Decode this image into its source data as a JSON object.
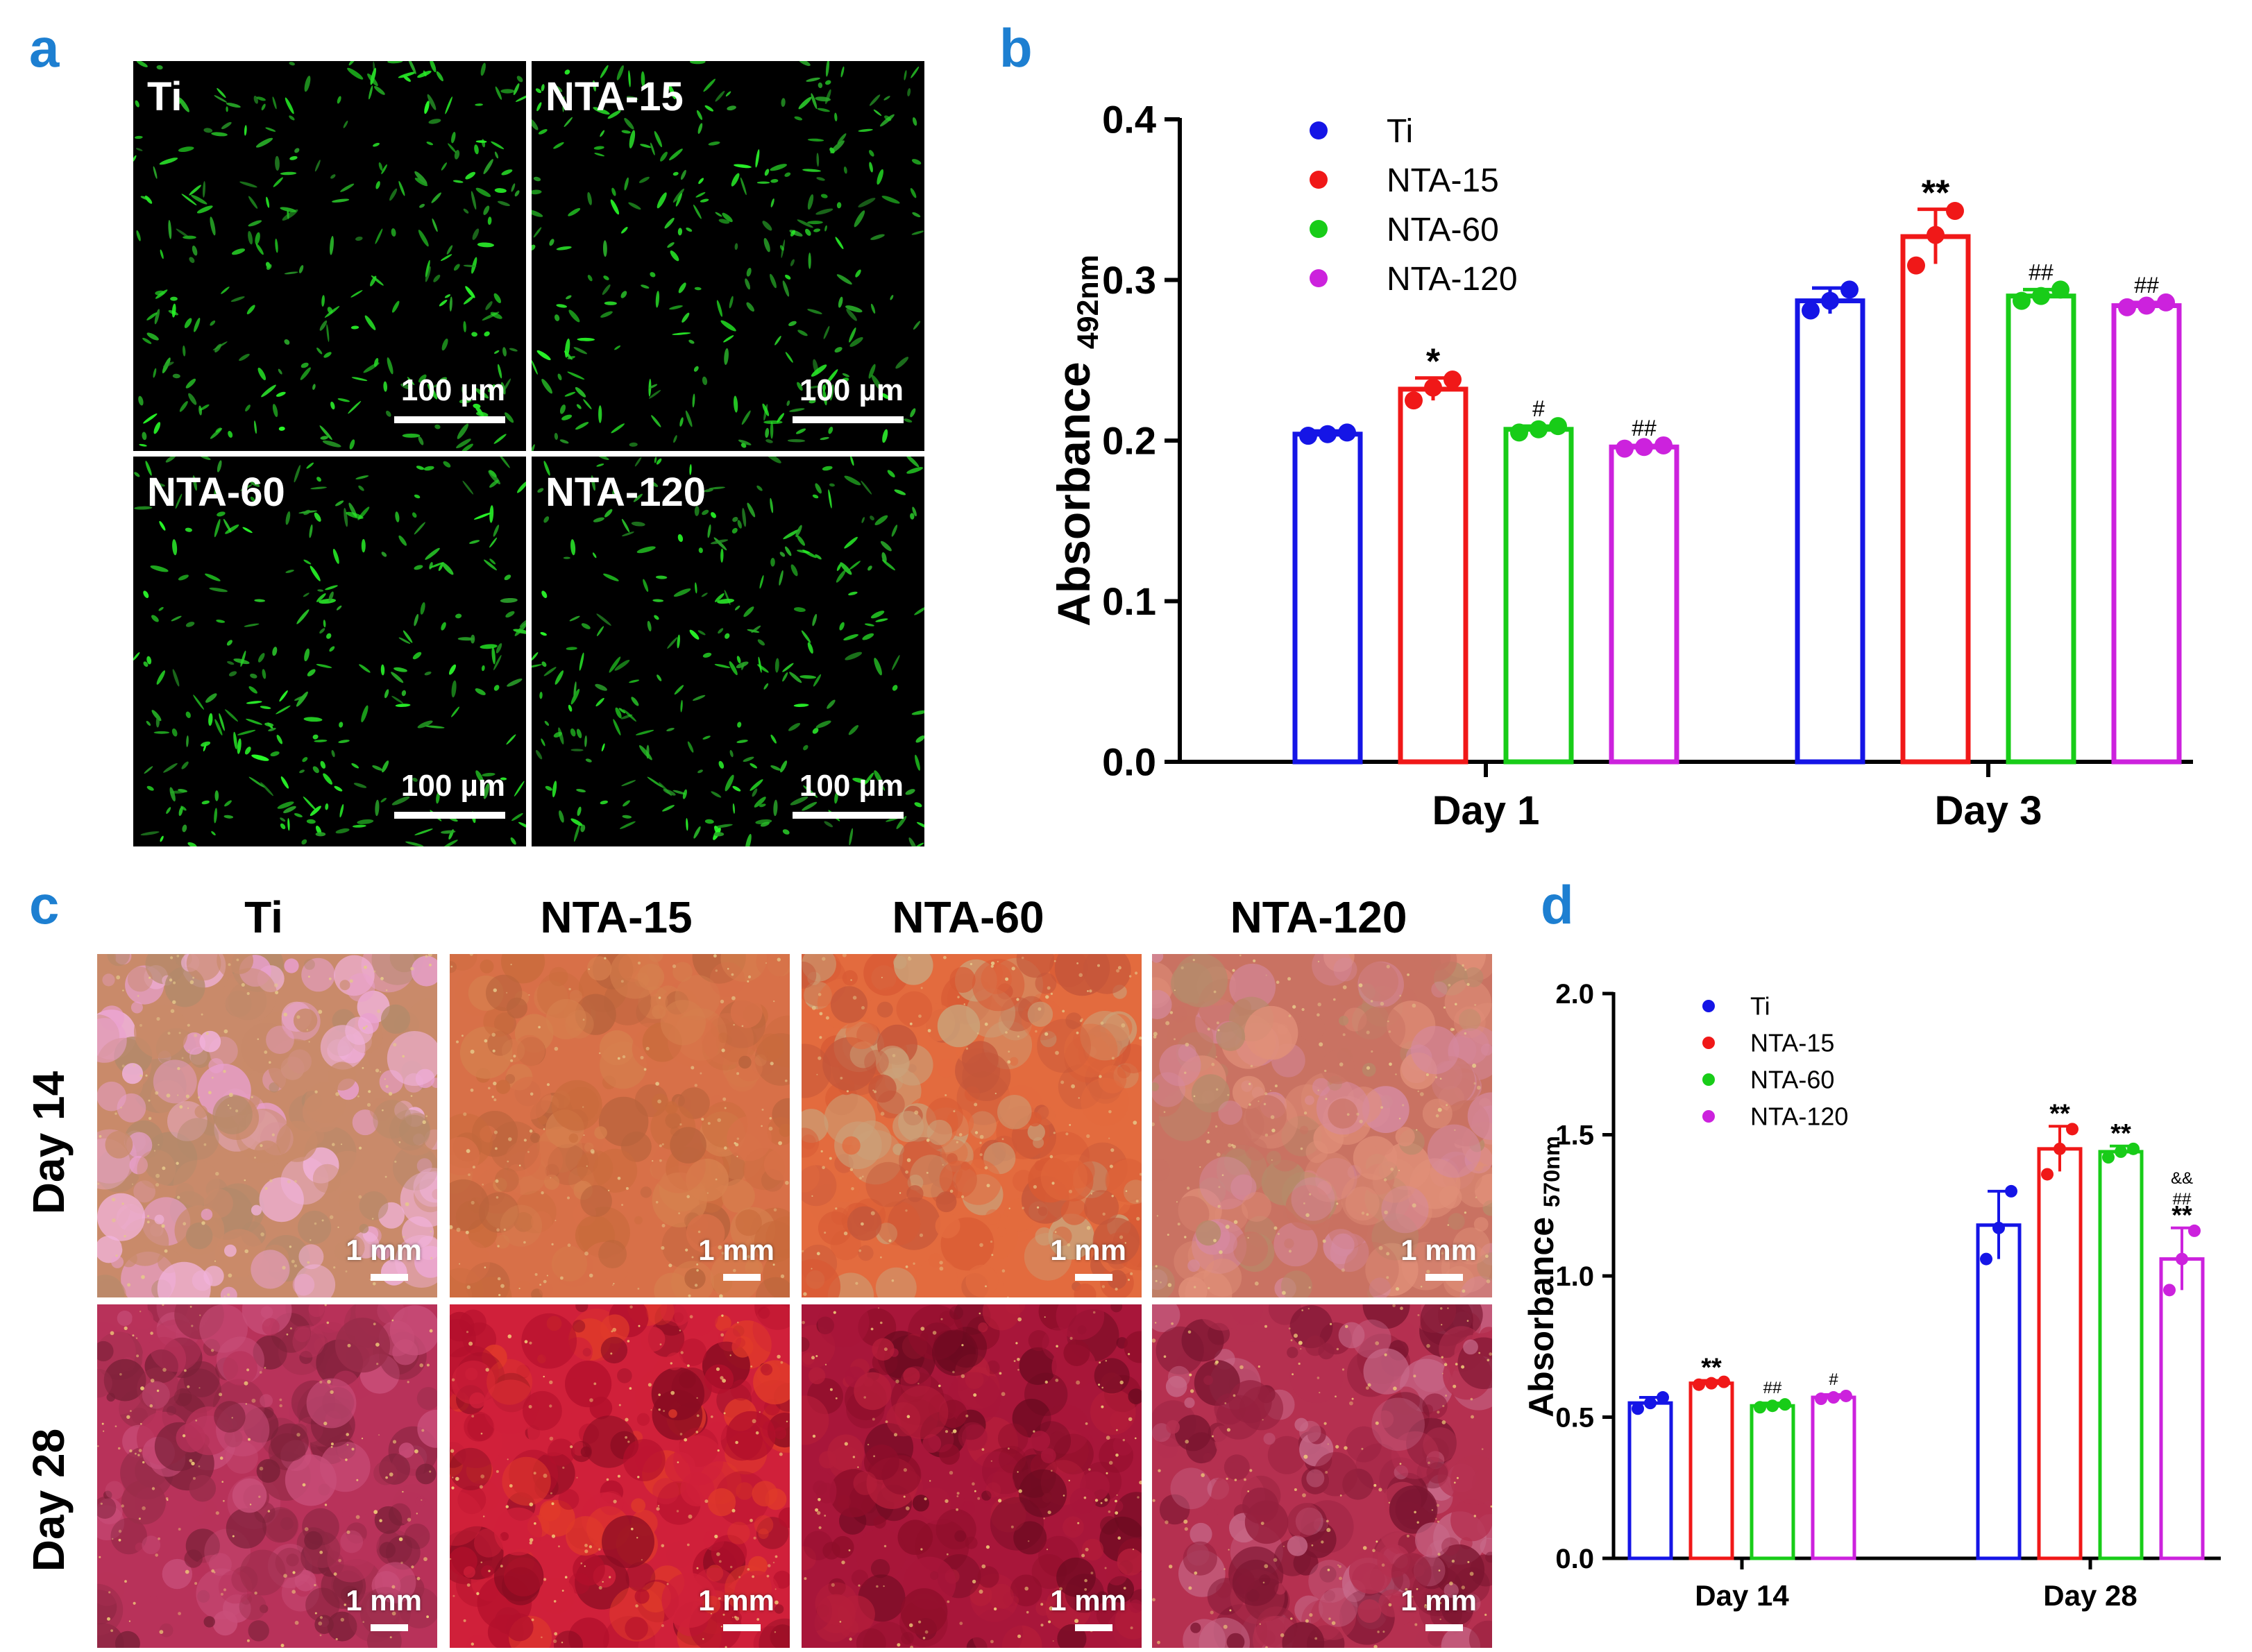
{
  "panels": {
    "a": {
      "label": "a",
      "images": [
        {
          "title": "Ti",
          "scale_bar": "100 µm"
        },
        {
          "title": "NTA-15",
          "scale_bar": "100 µm"
        },
        {
          "title": "NTA-60",
          "scale_bar": "100 µm"
        },
        {
          "title": "NTA-120",
          "scale_bar": "100 µm"
        }
      ]
    },
    "b": {
      "label": "b"
    },
    "c": {
      "label": "c",
      "column_titles": [
        "Ti",
        "NTA-15",
        "NTA-60",
        "NTA-120"
      ],
      "row_titles": [
        "Day 14",
        "Day 28"
      ],
      "scale_bar": "1 mm"
    },
    "d": {
      "label": "d"
    }
  },
  "colors": {
    "Ti": "#1515e6",
    "NTA-15": "#f01818",
    "NTA-60": "#18cc18",
    "NTA-120": "#cc22dd"
  },
  "chart_data": [
    {
      "id": "b",
      "type": "bar",
      "title": "",
      "xlabel": "",
      "ylabel": "Absorbance",
      "ylabel_sub": "492nm",
      "ylim": [
        0,
        0.4
      ],
      "yticks": [
        "0.0",
        "0.1",
        "0.2",
        "0.3",
        "0.4"
      ],
      "categories": [
        "Day 1",
        "Day 3"
      ],
      "series": [
        {
          "name": "Ti",
          "values": [
            0.204,
            0.287
          ],
          "errors": [
            0.002,
            0.008
          ],
          "points": [
            [
              0.203,
              0.204,
              0.205
            ],
            [
              0.281,
              0.287,
              0.294
            ]
          ],
          "annotations": [
            "",
            ""
          ]
        },
        {
          "name": "NTA-15",
          "values": [
            0.232,
            0.327
          ],
          "errors": [
            0.007,
            0.017
          ],
          "points": [
            [
              0.225,
              0.233,
              0.238
            ],
            [
              0.309,
              0.328,
              0.343
            ]
          ],
          "annotations": [
            "*",
            "**"
          ]
        },
        {
          "name": "NTA-60",
          "values": [
            0.207,
            0.29
          ],
          "errors": [
            0.002,
            0.004
          ],
          "points": [
            [
              0.205,
              0.207,
              0.209
            ],
            [
              0.287,
              0.29,
              0.294
            ]
          ],
          "annotations": [
            "#",
            "##"
          ]
        },
        {
          "name": "NTA-120",
          "values": [
            0.196,
            0.284
          ],
          "errors": [
            0.001,
            0.002
          ],
          "points": [
            [
              0.195,
              0.196,
              0.197
            ],
            [
              0.283,
              0.284,
              0.286
            ]
          ],
          "annotations": [
            "##",
            "##"
          ]
        }
      ],
      "legend": "top-left"
    },
    {
      "id": "d",
      "type": "bar",
      "title": "",
      "xlabel": "",
      "ylabel": "Absorbance",
      "ylabel_sub": "570nm",
      "ylim": [
        0,
        2.0
      ],
      "yticks": [
        "0.0",
        "0.5",
        "1.0",
        "1.5",
        "2.0"
      ],
      "categories": [
        "Day 14",
        "Day 28"
      ],
      "series": [
        {
          "name": "Ti",
          "values": [
            0.55,
            1.18
          ],
          "errors": [
            0.02,
            0.12
          ],
          "points": [
            [
              0.53,
              0.55,
              0.57
            ],
            [
              1.06,
              1.17,
              1.3
            ]
          ],
          "annotations": [
            "",
            ""
          ]
        },
        {
          "name": "NTA-15",
          "values": [
            0.62,
            1.45
          ],
          "errors": [
            0.01,
            0.08
          ],
          "points": [
            [
              0.615,
              0.62,
              0.625
            ],
            [
              1.36,
              1.45,
              1.52
            ]
          ],
          "annotations": [
            "**",
            "**"
          ]
        },
        {
          "name": "NTA-60",
          "values": [
            0.54,
            1.44
          ],
          "errors": [
            0.01,
            0.02
          ],
          "points": [
            [
              0.535,
              0.54,
              0.545
            ],
            [
              1.42,
              1.44,
              1.45
            ]
          ],
          "annotations": [
            "##",
            "**"
          ]
        },
        {
          "name": "NTA-120",
          "values": [
            0.57,
            1.06
          ],
          "errors": [
            0.01,
            0.11
          ],
          "points": [
            [
              0.565,
              0.57,
              0.575
            ],
            [
              0.95,
              1.06,
              1.16
            ]
          ],
          "annotations": [
            "#",
            "**"
          ],
          "extra_annotations": [
            "",
            "&&\n##"
          ]
        }
      ],
      "legend": "top-left"
    }
  ]
}
